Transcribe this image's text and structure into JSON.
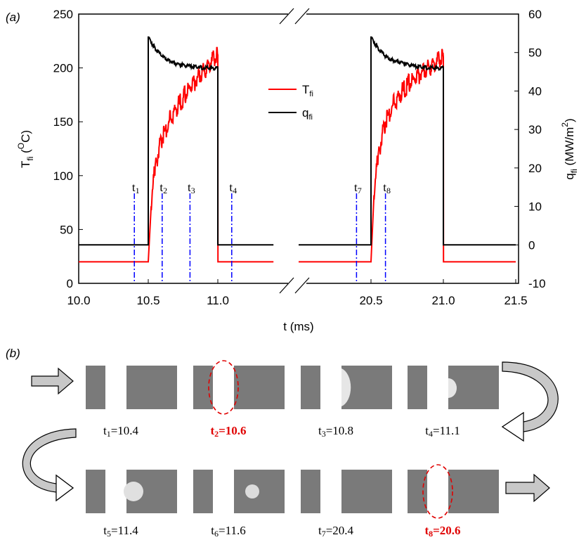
{
  "panel_a_label": "(a)",
  "panel_b_label": "(b)",
  "chart_data": {
    "type": "line",
    "xlabel": "t (ms)",
    "ylabel_left": {
      "main": "T",
      "sub": "fi",
      "unit_open": " (",
      "unit_sup": "O",
      "unit_close": "C)"
    },
    "ylabel_right": {
      "main": "q",
      "sub": "fi",
      "unit_open": " (MW/m",
      "unit_sup": "2",
      "unit_close": ")"
    },
    "x_ticks": [
      "10.0",
      "10.5",
      "11.0",
      "20.5",
      "21.0",
      "21.5"
    ],
    "x_tick_values": [
      10.0,
      10.5,
      11.0,
      20.5,
      21.0,
      21.5
    ],
    "x_break": {
      "from": 11.4,
      "to": 20.0
    },
    "ylim_left": [
      0,
      250
    ],
    "yticks_left": [
      0,
      50,
      100,
      150,
      200,
      250
    ],
    "ylim_right": [
      -10,
      60
    ],
    "yticks_right": [
      -10,
      0,
      10,
      20,
      30,
      40,
      50,
      60
    ],
    "legend_position": "center",
    "series": [
      {
        "name": "T",
        "name_sub": "fi",
        "color": "#ff0000",
        "axis": "left",
        "segments": [
          {
            "x": [
              10.0,
              10.5,
              10.52,
              10.55,
              10.6,
              10.65,
              10.7,
              10.75,
              10.8,
              10.85,
              10.9,
              10.95,
              11.0,
              11.001,
              11.4
            ],
            "y": [
              20,
              20,
              70,
              110,
              135,
              150,
              162,
              172,
              182,
              190,
              198,
              205,
              212,
              20,
              20
            ]
          },
          {
            "x": [
              20.0,
              20.5,
              20.52,
              20.55,
              20.6,
              20.65,
              20.7,
              20.75,
              20.8,
              20.85,
              20.9,
              20.95,
              21.0,
              21.001,
              21.5
            ],
            "y": [
              20,
              20,
              80,
              120,
              150,
              165,
              175,
              184,
              190,
              196,
              201,
              205,
              210,
              20,
              20
            ]
          }
        ]
      },
      {
        "name": "q",
        "name_sub": "fi",
        "color": "#000000",
        "axis": "right",
        "segments": [
          {
            "x": [
              10.0,
              10.5,
              10.5,
              10.55,
              10.6,
              10.65,
              10.7,
              10.8,
              10.9,
              11.0,
              11.0,
              11.4
            ],
            "y": [
              0,
              0,
              54,
              51,
              49,
              48,
              47,
              46.5,
              46,
              46,
              0,
              0
            ]
          },
          {
            "x": [
              20.0,
              20.5,
              20.5,
              20.55,
              20.6,
              20.65,
              20.7,
              20.8,
              20.9,
              21.0,
              21.0,
              21.5
            ],
            "y": [
              0,
              0,
              54,
              51,
              49,
              48,
              47.5,
              46.5,
              46,
              46,
              0,
              0
            ]
          }
        ]
      }
    ],
    "markers": [
      {
        "label": "t",
        "sub": "1",
        "x": 10.4
      },
      {
        "label": "t",
        "sub": "2",
        "x": 10.6
      },
      {
        "label": "t",
        "sub": "3",
        "x": 10.8
      },
      {
        "label": "t",
        "sub": "4",
        "x": 11.1
      },
      {
        "label": "t",
        "sub": "7",
        "x": 20.4
      },
      {
        "label": "t",
        "sub": "8",
        "x": 20.6
      }
    ],
    "marker_color": "#0000ff"
  },
  "frames": [
    {
      "t": "t",
      "sub": "1",
      "value": "=10.4",
      "highlight": false,
      "bubble": "none"
    },
    {
      "t": "t",
      "sub": "2",
      "value": "=10.6",
      "highlight": true,
      "bubble": "oval"
    },
    {
      "t": "t",
      "sub": "3",
      "value": "=10.8",
      "highlight": false,
      "bubble": "half-large"
    },
    {
      "t": "t",
      "sub": "4",
      "value": "=11.1",
      "highlight": false,
      "bubble": "half-small"
    },
    {
      "t": "t",
      "sub": "5",
      "value": "=11.4",
      "highlight": false,
      "bubble": "ball-left"
    },
    {
      "t": "t",
      "sub": "6",
      "value": "=11.6",
      "highlight": false,
      "bubble": "ball-small"
    },
    {
      "t": "t",
      "sub": "7",
      "value": "=20.4",
      "highlight": false,
      "bubble": "none"
    },
    {
      "t": "t",
      "sub": "8",
      "value": "=20.6",
      "highlight": true,
      "bubble": "oval"
    }
  ],
  "colors": {
    "highlight_text": "#e00000",
    "frame_gray": "#7a7a7a",
    "arrow_fill": "#c8c8c8"
  }
}
